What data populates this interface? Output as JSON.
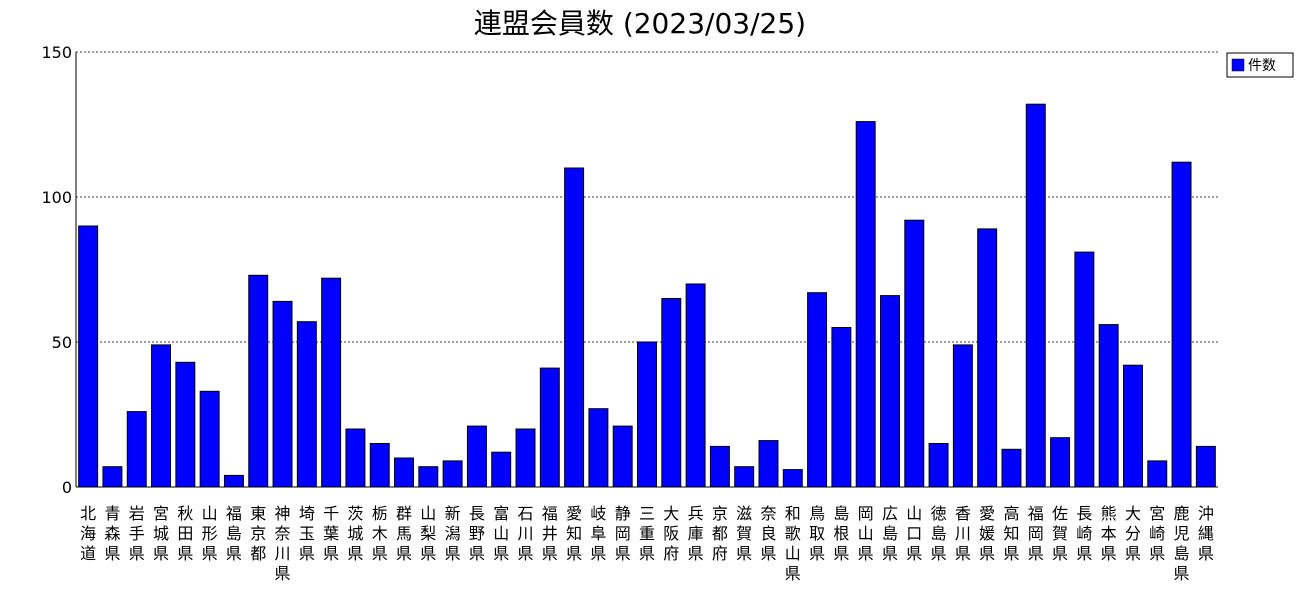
{
  "chart_data": {
    "type": "bar",
    "title": "連盟会員数 (2023/03/25)",
    "categories": [
      "北海道",
      "青森県",
      "岩手県",
      "宮城県",
      "秋田県",
      "山形県",
      "福島県",
      "東京都",
      "神奈川県",
      "埼玉県",
      "千葉県",
      "茨城県",
      "栃木県",
      "群馬県",
      "山梨県",
      "新潟県",
      "長野県",
      "富山県",
      "石川県",
      "福井県",
      "愛知県",
      "岐阜県",
      "静岡県",
      "三重県",
      "大阪府",
      "兵庫県",
      "京都府",
      "滋賀県",
      "奈良県",
      "和歌山県",
      "鳥取県",
      "島根県",
      "岡山県",
      "広島県",
      "山口県",
      "徳島県",
      "香川県",
      "愛媛県",
      "高知県",
      "福岡県",
      "佐賀県",
      "長崎県",
      "熊本県",
      "大分県",
      "宮崎県",
      "鹿児島県",
      "沖縄県"
    ],
    "series": [
      {
        "name": "件数",
        "color": "#0000FF",
        "values": [
          90,
          7,
          26,
          49,
          43,
          33,
          4,
          73,
          64,
          57,
          72,
          20,
          15,
          10,
          7,
          9,
          21,
          12,
          20,
          41,
          110,
          27,
          21,
          50,
          65,
          70,
          14,
          7,
          16,
          6,
          67,
          55,
          126,
          66,
          92,
          15,
          49,
          89,
          13,
          132,
          17,
          81,
          56,
          42,
          9,
          112,
          14
        ]
      }
    ],
    "xlabel": "",
    "ylabel": "",
    "ylim": [
      0,
      150
    ],
    "yticks": [
      0,
      50,
      100,
      150
    ],
    "grid": true,
    "legend_position": "top-right"
  }
}
